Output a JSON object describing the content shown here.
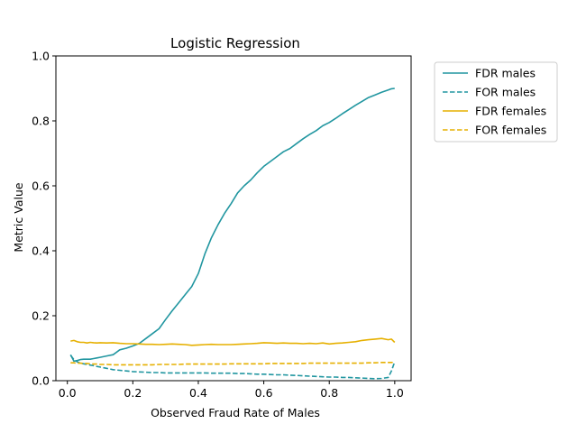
{
  "chart_data": {
    "type": "line",
    "title": "Logistic Regression",
    "xlabel": "Observed Fraud Rate of Males",
    "ylabel": "Metric Value",
    "xlim": [
      -0.035,
      1.05
    ],
    "ylim": [
      0,
      1
    ],
    "xticks": [
      0.0,
      0.2,
      0.4,
      0.6,
      0.8,
      1.0
    ],
    "xtick_labels": [
      "0.0",
      "0.2",
      "0.4",
      "0.6",
      "0.8",
      "1.0"
    ],
    "yticks": [
      0.0,
      0.2,
      0.4,
      0.6,
      0.8,
      1.0
    ],
    "ytick_labels": [
      "0.0",
      "0.2",
      "0.4",
      "0.6",
      "0.8",
      "1.0"
    ],
    "grid": false,
    "legend_position": "outside-right-top",
    "colors": {
      "males": "#2196a0",
      "females": "#e6b000"
    },
    "x": [
      0.01,
      0.02,
      0.03,
      0.04,
      0.05,
      0.06,
      0.07,
      0.08,
      0.09,
      0.1,
      0.12,
      0.14,
      0.16,
      0.18,
      0.2,
      0.22,
      0.24,
      0.26,
      0.28,
      0.3,
      0.32,
      0.34,
      0.36,
      0.38,
      0.4,
      0.42,
      0.44,
      0.46,
      0.48,
      0.5,
      0.52,
      0.54,
      0.56,
      0.58,
      0.6,
      0.62,
      0.64,
      0.66,
      0.68,
      0.7,
      0.72,
      0.74,
      0.76,
      0.78,
      0.8,
      0.82,
      0.84,
      0.86,
      0.88,
      0.9,
      0.92,
      0.94,
      0.96,
      0.98,
      0.99,
      1.0
    ],
    "series": [
      {
        "name": "FDR males",
        "style": "solid",
        "color": "#2196a0",
        "values": [
          0.08,
          0.06,
          0.062,
          0.065,
          0.066,
          0.066,
          0.066,
          0.068,
          0.07,
          0.072,
          0.076,
          0.08,
          0.095,
          0.1,
          0.107,
          0.115,
          0.13,
          0.145,
          0.16,
          0.188,
          0.215,
          0.24,
          0.265,
          0.29,
          0.33,
          0.39,
          0.44,
          0.48,
          0.515,
          0.545,
          0.578,
          0.6,
          0.618,
          0.64,
          0.66,
          0.675,
          0.69,
          0.705,
          0.715,
          0.73,
          0.745,
          0.758,
          0.77,
          0.785,
          0.795,
          0.808,
          0.822,
          0.835,
          0.848,
          0.86,
          0.872,
          0.88,
          0.888,
          0.895,
          0.899,
          0.9
        ]
      },
      {
        "name": "FOR males",
        "style": "dashed",
        "color": "#2196a0",
        "values": [
          0.078,
          0.065,
          0.058,
          0.054,
          0.052,
          0.05,
          0.048,
          0.046,
          0.044,
          0.042,
          0.038,
          0.034,
          0.032,
          0.03,
          0.028,
          0.027,
          0.026,
          0.025,
          0.025,
          0.024,
          0.024,
          0.024,
          0.024,
          0.024,
          0.024,
          0.024,
          0.023,
          0.023,
          0.023,
          0.023,
          0.022,
          0.022,
          0.021,
          0.02,
          0.02,
          0.019,
          0.018,
          0.018,
          0.017,
          0.016,
          0.015,
          0.014,
          0.013,
          0.012,
          0.011,
          0.011,
          0.01,
          0.01,
          0.009,
          0.008,
          0.007,
          0.006,
          0.007,
          0.01,
          0.03,
          0.058
        ]
      },
      {
        "name": "FDR females",
        "style": "solid",
        "color": "#e6b000",
        "values": [
          0.122,
          0.124,
          0.12,
          0.118,
          0.118,
          0.116,
          0.118,
          0.117,
          0.116,
          0.117,
          0.116,
          0.117,
          0.115,
          0.114,
          0.114,
          0.113,
          0.112,
          0.112,
          0.111,
          0.112,
          0.113,
          0.112,
          0.111,
          0.109,
          0.11,
          0.111,
          0.112,
          0.111,
          0.111,
          0.111,
          0.112,
          0.113,
          0.114,
          0.115,
          0.117,
          0.116,
          0.115,
          0.116,
          0.115,
          0.115,
          0.114,
          0.115,
          0.114,
          0.116,
          0.113,
          0.115,
          0.116,
          0.118,
          0.12,
          0.124,
          0.126,
          0.128,
          0.13,
          0.126,
          0.128,
          0.118
        ]
      },
      {
        "name": "FOR females",
        "style": "dashed",
        "color": "#e6b000",
        "values": [
          0.055,
          0.055,
          0.054,
          0.054,
          0.053,
          0.053,
          0.052,
          0.051,
          0.051,
          0.05,
          0.05,
          0.049,
          0.049,
          0.049,
          0.049,
          0.049,
          0.049,
          0.049,
          0.05,
          0.05,
          0.05,
          0.05,
          0.051,
          0.051,
          0.051,
          0.051,
          0.051,
          0.051,
          0.051,
          0.052,
          0.052,
          0.052,
          0.052,
          0.052,
          0.052,
          0.053,
          0.053,
          0.053,
          0.053,
          0.053,
          0.053,
          0.054,
          0.054,
          0.054,
          0.054,
          0.054,
          0.054,
          0.054,
          0.054,
          0.054,
          0.055,
          0.055,
          0.056,
          0.056,
          0.056,
          0.056
        ]
      }
    ]
  }
}
